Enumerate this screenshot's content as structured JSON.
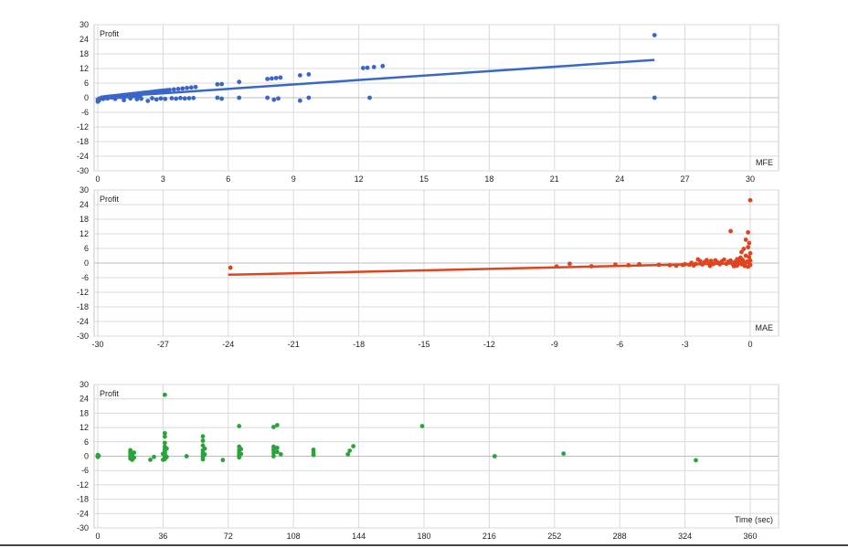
{
  "chart_data": [
    {
      "type": "scatter",
      "ylabel": "Profit",
      "xlabel": "MFE",
      "xlim": [
        0,
        30
      ],
      "ylim": [
        -30,
        30
      ],
      "xticks": [
        0,
        3,
        6,
        9,
        12,
        15,
        18,
        21,
        24,
        27,
        30
      ],
      "yticks": [
        30,
        24,
        18,
        12,
        6,
        0,
        -6,
        -12,
        -18,
        -24,
        -30
      ],
      "grid": true,
      "series": [
        {
          "color": "#3A66C9",
          "points": [
            [
              0.0,
              -1.6
            ],
            [
              0.0,
              -0.8
            ],
            [
              0.05,
              -1.2
            ],
            [
              0.1,
              -0.4
            ],
            [
              0.15,
              -0.2
            ],
            [
              0.2,
              0.1
            ],
            [
              0.25,
              -0.5
            ],
            [
              0.3,
              0.2
            ],
            [
              0.35,
              0.0
            ],
            [
              0.4,
              0.3
            ],
            [
              0.45,
              -0.3
            ],
            [
              0.5,
              0.4
            ],
            [
              0.55,
              0.2
            ],
            [
              0.6,
              0.5
            ],
            [
              0.65,
              0.1
            ],
            [
              0.7,
              0.6
            ],
            [
              0.75,
              0.3
            ],
            [
              0.8,
              0.7
            ],
            [
              0.85,
              0.2
            ],
            [
              0.9,
              0.8
            ],
            [
              0.95,
              0.4
            ],
            [
              1.0,
              0.9
            ],
            [
              1.05,
              0.3
            ],
            [
              1.1,
              1.0
            ],
            [
              1.15,
              0.5
            ],
            [
              1.2,
              1.1
            ],
            [
              1.25,
              0.4
            ],
            [
              1.3,
              1.2
            ],
            [
              1.35,
              0.6
            ],
            [
              1.4,
              1.3
            ],
            [
              1.45,
              0.7
            ],
            [
              1.5,
              1.4
            ],
            [
              1.55,
              0.5
            ],
            [
              1.6,
              1.5
            ],
            [
              1.65,
              0.8
            ],
            [
              1.7,
              1.6
            ],
            [
              1.75,
              0.6
            ],
            [
              1.8,
              1.7
            ],
            [
              1.85,
              0.9
            ],
            [
              1.9,
              1.8
            ],
            [
              1.95,
              0.7
            ],
            [
              2.0,
              1.9
            ],
            [
              2.1,
              2.0
            ],
            [
              2.2,
              2.1
            ],
            [
              2.3,
              2.2
            ],
            [
              2.4,
              2.3
            ],
            [
              2.5,
              2.4
            ],
            [
              2.6,
              2.5
            ],
            [
              2.7,
              2.6
            ],
            [
              2.8,
              2.7
            ],
            [
              2.9,
              2.8
            ],
            [
              3.0,
              2.9
            ],
            [
              3.1,
              3.0
            ],
            [
              3.2,
              3.1
            ],
            [
              3.3,
              3.2
            ],
            [
              3.5,
              3.4
            ],
            [
              3.7,
              3.6
            ],
            [
              3.9,
              3.8
            ],
            [
              4.1,
              4.0
            ],
            [
              4.3,
              4.2
            ],
            [
              4.5,
              4.4
            ],
            [
              0.8,
              -0.5
            ],
            [
              1.2,
              -1.0
            ],
            [
              1.5,
              -0.3
            ],
            [
              1.8,
              -0.6
            ],
            [
              2.0,
              -0.4
            ],
            [
              2.3,
              -1.3
            ],
            [
              2.5,
              -0.2
            ],
            [
              2.7,
              -0.7
            ],
            [
              2.9,
              -0.3
            ],
            [
              3.1,
              -0.5
            ],
            [
              3.4,
              -0.2
            ],
            [
              3.6,
              -0.4
            ],
            [
              3.8,
              -0.1
            ],
            [
              4.0,
              -0.3
            ],
            [
              4.2,
              -0.2
            ],
            [
              4.4,
              -0.1
            ],
            [
              5.5,
              5.5
            ],
            [
              5.7,
              5.6
            ],
            [
              5.5,
              0.0
            ],
            [
              5.7,
              -0.4
            ],
            [
              6.5,
              6.5
            ],
            [
              6.5,
              0.0
            ],
            [
              7.8,
              7.7
            ],
            [
              8.0,
              7.9
            ],
            [
              8.2,
              8.1
            ],
            [
              8.4,
              8.3
            ],
            [
              7.8,
              0.0
            ],
            [
              8.1,
              -0.8
            ],
            [
              8.3,
              -0.3
            ],
            [
              9.3,
              9.2
            ],
            [
              9.7,
              9.6
            ],
            [
              9.3,
              -1.2
            ],
            [
              9.7,
              0.0
            ],
            [
              12.2,
              12.2
            ],
            [
              12.4,
              12.3
            ],
            [
              12.7,
              12.6
            ],
            [
              13.1,
              13.0
            ],
            [
              12.5,
              0.0
            ],
            [
              25.6,
              25.7
            ],
            [
              25.6,
              0.0
            ]
          ]
        }
      ],
      "trendline": {
        "color": "#3A66C9",
        "from": [
          0,
          0.0
        ],
        "to": [
          25.6,
          15.5
        ]
      }
    },
    {
      "type": "scatter",
      "ylabel": "Profit",
      "xlabel": "MAE",
      "xlim": [
        -30,
        0
      ],
      "ylim": [
        -30,
        30
      ],
      "xticks": [
        -30,
        -27,
        -24,
        -21,
        -18,
        -15,
        -12,
        -9,
        -6,
        -3,
        0
      ],
      "yticks": [
        30,
        24,
        18,
        12,
        6,
        0,
        -6,
        -12,
        -18,
        -24,
        -30
      ],
      "grid": true,
      "series": [
        {
          "color": "#E0441E",
          "points": [
            [
              -23.9,
              -1.9
            ],
            [
              -8.9,
              -1.4
            ],
            [
              -8.3,
              -0.3
            ],
            [
              -7.3,
              -1.3
            ],
            [
              -6.2,
              -0.6
            ],
            [
              -5.6,
              -0.9
            ],
            [
              -5.1,
              -0.5
            ],
            [
              -4.2,
              -0.7
            ],
            [
              -3.7,
              -0.9
            ],
            [
              -3.4,
              -1.1
            ],
            [
              -3.1,
              -0.8
            ],
            [
              -3.0,
              -0.5
            ],
            [
              -2.8,
              -0.7
            ],
            [
              -2.6,
              -1.0
            ],
            [
              -2.5,
              -0.3
            ],
            [
              -2.4,
              1.5
            ],
            [
              -2.3,
              0.8
            ],
            [
              -2.2,
              -0.6
            ],
            [
              -2.1,
              0.4
            ],
            [
              -2.0,
              1.2
            ],
            [
              -1.9,
              -0.2
            ],
            [
              -1.8,
              0.9
            ],
            [
              -1.7,
              -0.4
            ],
            [
              -1.6,
              1.1
            ],
            [
              -1.5,
              0.3
            ],
            [
              -1.4,
              -0.5
            ],
            [
              -1.3,
              0.7
            ],
            [
              -1.2,
              1.4
            ],
            [
              -1.1,
              -0.3
            ],
            [
              -1.0,
              0.6
            ],
            [
              -0.9,
              13.1
            ],
            [
              -0.9,
              1.0
            ],
            [
              -0.8,
              -0.4
            ],
            [
              -0.7,
              0.5
            ],
            [
              -0.6,
              1.6
            ],
            [
              -0.6,
              -1.0
            ],
            [
              -0.5,
              0.8
            ],
            [
              -0.45,
              2.2
            ],
            [
              -0.4,
              4.5
            ],
            [
              -0.4,
              -0.5
            ],
            [
              -0.35,
              1.3
            ],
            [
              -0.3,
              0.2
            ],
            [
              -0.3,
              5.8
            ],
            [
              -0.25,
              -1.2
            ],
            [
              -0.2,
              9.6
            ],
            [
              -0.2,
              3.0
            ],
            [
              -0.15,
              0.6
            ],
            [
              -0.1,
              12.6
            ],
            [
              -0.1,
              6.5
            ],
            [
              -0.1,
              -1.5
            ],
            [
              -0.05,
              2.4
            ],
            [
              -0.05,
              8.2
            ],
            [
              0.0,
              25.8
            ],
            [
              0.0,
              4.0
            ],
            [
              0.0,
              1.0
            ],
            [
              0.0,
              -0.8
            ],
            [
              -2.7,
              0.1
            ],
            [
              -1.85,
              -1.2
            ],
            [
              -1.35,
              -0.1
            ],
            [
              -0.75,
              -1.3
            ],
            [
              -0.55,
              0.2
            ]
          ]
        }
      ],
      "trendline": {
        "color": "#E0441E",
        "from": [
          -24,
          -4.8
        ],
        "to": [
          0,
          0.0
        ]
      }
    },
    {
      "type": "scatter",
      "ylabel": "Profit",
      "xlabel": "Time (sec)",
      "xlim": [
        0,
        360
      ],
      "ylim": [
        -30,
        30
      ],
      "xticks": [
        0,
        36,
        72,
        108,
        144,
        180,
        216,
        252,
        288,
        324,
        360
      ],
      "yticks": [
        30,
        24,
        18,
        12,
        6,
        0,
        -6,
        -12,
        -18,
        -24,
        -30
      ],
      "grid": true,
      "series": [
        {
          "color": "#2AA43A",
          "points": [
            [
              0,
              0.5
            ],
            [
              0,
              -0.3
            ],
            [
              0.5,
              0.1
            ],
            [
              18,
              2.0
            ],
            [
              18,
              1.2
            ],
            [
              18,
              0.4
            ],
            [
              18,
              -0.2
            ],
            [
              18,
              -1.0
            ],
            [
              19,
              -1.5
            ],
            [
              19,
              0.8
            ],
            [
              20,
              1.5
            ],
            [
              20,
              -0.6
            ],
            [
              19,
              0.0
            ],
            [
              18,
              2.5
            ],
            [
              29,
              -1.5
            ],
            [
              31,
              -0.3
            ],
            [
              37,
              25.7
            ],
            [
              37,
              9.6
            ],
            [
              37,
              8.2
            ],
            [
              37,
              5.6
            ],
            [
              37,
              4.0
            ],
            [
              37,
              2.8
            ],
            [
              37,
              2.0
            ],
            [
              37,
              1.3
            ],
            [
              37,
              0.6
            ],
            [
              37,
              0.0
            ],
            [
              37,
              -0.6
            ],
            [
              37,
              -1.2
            ],
            [
              36,
              1.0
            ],
            [
              38,
              -0.3
            ],
            [
              36,
              -1.5
            ],
            [
              38,
              3.2
            ],
            [
              49,
              0.0
            ],
            [
              58,
              8.3
            ],
            [
              58,
              6.5
            ],
            [
              58,
              4.5
            ],
            [
              58,
              2.5
            ],
            [
              58,
              1.5
            ],
            [
              58,
              0.5
            ],
            [
              58,
              -0.5
            ],
            [
              58,
              -1.3
            ],
            [
              59,
              3.2
            ],
            [
              59,
              0.8
            ],
            [
              69,
              -1.6
            ],
            [
              78,
              12.6
            ],
            [
              78,
              4.0
            ],
            [
              78,
              2.5
            ],
            [
              78,
              1.5
            ],
            [
              78,
              0.5
            ],
            [
              78,
              -0.5
            ],
            [
              79,
              3.0
            ],
            [
              79,
              1.0
            ],
            [
              97,
              12.2
            ],
            [
              99,
              13.0
            ],
            [
              97,
              4.0
            ],
            [
              97,
              2.7
            ],
            [
              97,
              1.3
            ],
            [
              97,
              0.0
            ],
            [
              99,
              3.5
            ],
            [
              99,
              1.8
            ],
            [
              101,
              0.8
            ],
            [
              119,
              2.7
            ],
            [
              119,
              1.6
            ],
            [
              119,
              0.5
            ],
            [
              138,
              0.8
            ],
            [
              139,
              2.3
            ],
            [
              141,
              4.2
            ],
            [
              179,
              12.6
            ],
            [
              219,
              0.0
            ],
            [
              257,
              1.1
            ],
            [
              330,
              -1.7
            ]
          ]
        }
      ]
    }
  ]
}
